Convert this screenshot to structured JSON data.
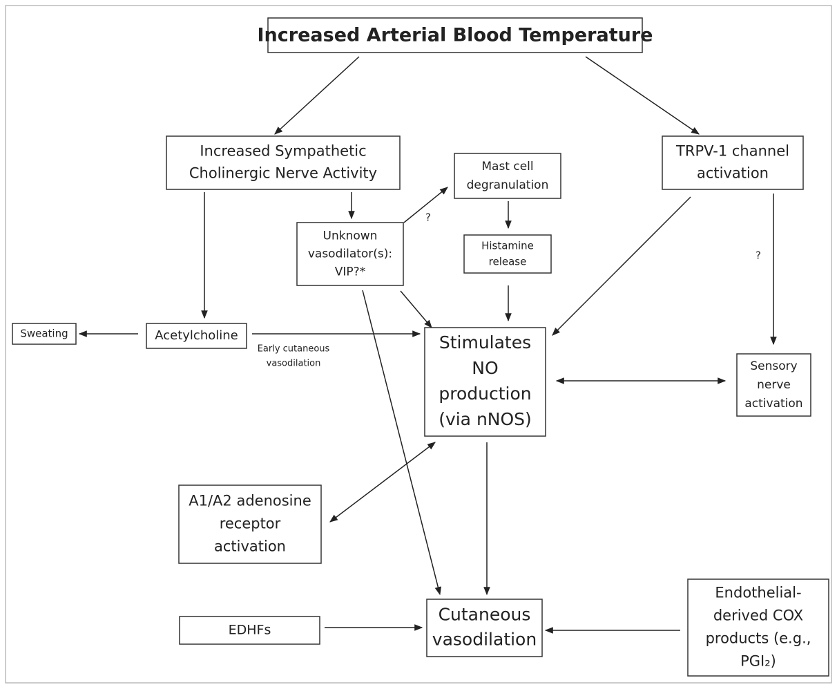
{
  "title": "Increased Arterial Blood Temperature",
  "nodes": [
    {
      "lines": [
        "Increased Sympathetic",
        "Cholinergic Nerve Activity"
      ]
    },
    {
      "lines": [
        "TRPV-1 channel",
        "activation"
      ]
    },
    {
      "lines": [
        "Mast cell",
        "degranulation"
      ]
    },
    {
      "lines": [
        "Unknown",
        "vasodilator(s):",
        "VIP?*"
      ]
    },
    {
      "lines": [
        "Histamine",
        "release"
      ]
    },
    {
      "lines": [
        "Sweating"
      ]
    },
    {
      "lines": [
        "Acetylcholine"
      ]
    },
    {
      "lines": [
        "Stimulates",
        "NO",
        "production",
        "(via nNOS)"
      ]
    },
    {
      "lines": [
        "Sensory",
        "nerve",
        "activation"
      ]
    },
    {
      "lines": [
        "A1/A2 adenosine",
        "receptor",
        "activation"
      ]
    },
    {
      "lines": [
        "EDHFs"
      ]
    },
    {
      "lines": [
        "Cutaneous",
        "vasodilation"
      ]
    },
    {
      "lines": [
        "Endothelial-",
        "derived COX",
        "products (e.g.,",
        "PGI₂)"
      ]
    }
  ],
  "edge_labels": [
    "?",
    "?",
    "Early cutaneous",
    "vasodilation"
  ]
}
